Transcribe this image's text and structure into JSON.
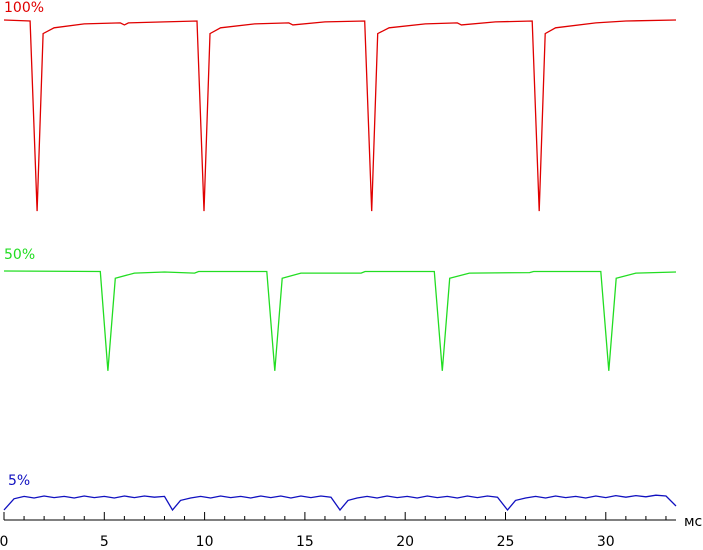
{
  "chart_data": [
    {
      "type": "line",
      "title": "100%",
      "color": "#e00000",
      "xlim": [
        0,
        33.5
      ],
      "ylim": [
        0,
        100
      ],
      "x": [
        0,
        1.3,
        1.65,
        1.95,
        2.5,
        4,
        5.8,
        6,
        6.2,
        8,
        9.62,
        9.97,
        10.27,
        10.8,
        12.5,
        14.2,
        14.4,
        16,
        17.98,
        18.33,
        18.63,
        19.2,
        21,
        22.6,
        22.8,
        24.5,
        26.33,
        26.68,
        26.98,
        27.5,
        29.5,
        31,
        33.5
      ],
      "values": [
        100,
        99.5,
        2,
        93,
        96,
        98,
        98.5,
        97.5,
        98.5,
        99,
        99.5,
        2,
        93,
        96,
        98,
        98.5,
        97.5,
        99,
        99.5,
        2,
        93,
        96,
        98,
        98.5,
        97.5,
        99,
        99.5,
        2,
        93,
        96,
        98.5,
        99.5,
        100
      ]
    },
    {
      "type": "line",
      "title": "50%",
      "color": "#22dd22",
      "xlim": [
        0,
        33.5
      ],
      "ylim": [
        0,
        100
      ],
      "x": [
        0,
        4.8,
        5.18,
        5.55,
        6.5,
        8,
        9.5,
        9.7,
        13.1,
        13.5,
        13.87,
        14.8,
        17.8,
        18,
        21.45,
        21.85,
        22.22,
        23.2,
        26.2,
        26.4,
        29.75,
        30.15,
        30.52,
        31.5,
        33.5
      ],
      "values": [
        100,
        99.5,
        4,
        93,
        98,
        99,
        98,
        99.5,
        99.5,
        4,
        93,
        98,
        98,
        99.5,
        99.5,
        4,
        93,
        98,
        98.5,
        99.5,
        99.5,
        4,
        93,
        98,
        99
      ]
    },
    {
      "type": "line",
      "title": "5%",
      "color": "#1010c0",
      "xlim": [
        0,
        33.5
      ],
      "ylim": [
        0,
        100
      ],
      "x": [
        0,
        0.5,
        1,
        1.5,
        2,
        2.5,
        3,
        3.5,
        4,
        4.5,
        5,
        5.5,
        6,
        6.5,
        7,
        7.5,
        8,
        8.4,
        8.8,
        9.3,
        9.8,
        10.3,
        10.8,
        11.3,
        11.8,
        12.3,
        12.8,
        13.3,
        13.8,
        14.3,
        14.8,
        15.3,
        15.8,
        16.3,
        16.75,
        17.15,
        17.6,
        18.1,
        18.6,
        19.1,
        19.6,
        20.1,
        20.6,
        21.1,
        21.6,
        22.1,
        22.6,
        23.1,
        23.6,
        24.1,
        24.6,
        25.1,
        25.5,
        26,
        26.5,
        27,
        27.5,
        28,
        28.5,
        29,
        29.5,
        30,
        30.5,
        31,
        31.5,
        32,
        32.5,
        33,
        33.5
      ],
      "values": [
        50,
        78,
        84,
        80,
        85,
        81,
        84,
        80,
        85,
        81,
        84,
        80,
        85,
        81,
        85,
        82,
        84,
        50,
        74,
        80,
        84,
        80,
        85,
        81,
        84,
        80,
        85,
        81,
        85,
        80,
        85,
        81,
        85,
        82,
        50,
        74,
        80,
        84,
        80,
        85,
        81,
        84,
        80,
        85,
        81,
        84,
        80,
        85,
        81,
        85,
        82,
        50,
        74,
        80,
        84,
        80,
        85,
        81,
        84,
        80,
        85,
        81,
        86,
        82,
        86,
        83,
        87,
        85,
        60
      ],
      "xticks": [
        0,
        5,
        10,
        15,
        20,
        25,
        30
      ],
      "minor_xticks": [
        1,
        2,
        3,
        4,
        6,
        7,
        8,
        9,
        11,
        12,
        13,
        14,
        16,
        17,
        18,
        19,
        21,
        22,
        23,
        24,
        26,
        27,
        28,
        29,
        31,
        32,
        33
      ],
      "xlabel": "мс"
    }
  ]
}
